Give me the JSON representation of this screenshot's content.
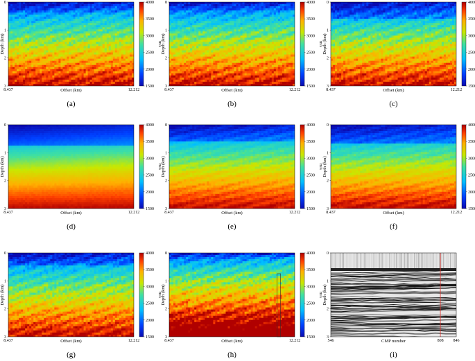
{
  "panels": [
    {
      "letter": "(a)",
      "style": "texture",
      "top_blue": 0.12,
      "band": 0.05,
      "seed": 11
    },
    {
      "letter": "(b)",
      "style": "texture",
      "top_blue": 0.1,
      "band": 0.06,
      "seed": 23
    },
    {
      "letter": "(c)",
      "style": "texture",
      "top_blue": 0.18,
      "band": 0.05,
      "seed": 37
    },
    {
      "letter": "(d)",
      "style": "smooth",
      "top_blue": 0.25,
      "band": 0.0,
      "seed": 41
    },
    {
      "letter": "(e)",
      "style": "smooth-texture",
      "top_blue": 0.2,
      "band": 0.03,
      "seed": 53
    },
    {
      "letter": "(f)",
      "style": "smooth-texture",
      "top_blue": 0.22,
      "band": 0.02,
      "seed": 67
    },
    {
      "letter": "(g)",
      "style": "texture",
      "top_blue": 0.15,
      "band": 0.04,
      "seed": 71
    },
    {
      "letter": "(h)",
      "style": "dark",
      "top_blue": 0.08,
      "band": 0.05,
      "seed": 83
    },
    {
      "letter": "(i)",
      "style": "seismic",
      "top_blue": 0.0,
      "band": 0.0,
      "seed": 97
    }
  ],
  "axes": {
    "depth_label": "Depth (km)",
    "offset_label": "Offset (km)",
    "cmp_label": "CMP number",
    "depth_ticks": [
      "0",
      "1",
      "2",
      "3"
    ],
    "offset_ticks": [
      "8.437",
      "12.212"
    ],
    "cmp_ticks": [
      "546",
      "808",
      "846"
    ]
  },
  "colorbar": {
    "unit": "m/s",
    "ticks": [
      "4000",
      "3500",
      "3000",
      "2500",
      "2000",
      "1500"
    ],
    "min": 1500,
    "max": 4000
  },
  "seismic_marker_cmp": 808,
  "velocity_marker_offset_fraction": 0.86
}
